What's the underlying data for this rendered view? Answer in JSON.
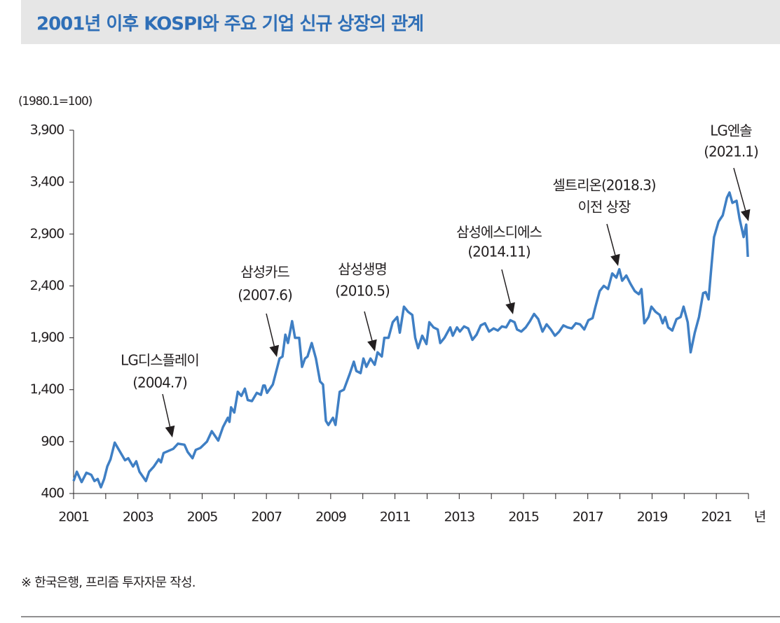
{
  "chart_data": {
    "type": "line",
    "title": "2001년 이후 KOSPI와 주요 기업 신규 상장의 관계",
    "y_unit": "(1980.1=100)",
    "x_unit": "년",
    "source": "※ 한국은행, 프리즘 투자자문 작성.",
    "color": "#3f7fc4",
    "xlim": [
      2001,
      2022
    ],
    "xticks": [
      2001,
      2003,
      2005,
      2007,
      2009,
      2011,
      2013,
      2015,
      2017,
      2019,
      2021
    ],
    "xminor": [
      2002,
      2004,
      2006,
      2008,
      2010,
      2012,
      2014,
      2016,
      2018,
      2020,
      2022
    ],
    "ylim": [
      400,
      3900
    ],
    "yticks": [
      400,
      900,
      {
        "value": 1400,
        "label": "1,400"
      },
      {
        "value": 1900,
        "label": "1,900"
      },
      {
        "value": 2400,
        "label": "2,400"
      },
      {
        "value": 2900,
        "label": "2,900"
      },
      {
        "value": 3400,
        "label": "3,400"
      },
      {
        "value": 3900,
        "label": "3,900"
      }
    ],
    "x": [
      2001.0,
      2001.1,
      2001.25,
      2001.4,
      2001.55,
      2001.65,
      2001.75,
      2001.85,
      2001.95,
      2002.05,
      2002.15,
      2002.28,
      2002.45,
      2002.6,
      2002.7,
      2002.85,
      2002.95,
      2003.05,
      2003.25,
      2003.35,
      2003.5,
      2003.65,
      2003.72,
      2003.8,
      2003.95,
      2004.1,
      2004.25,
      2004.45,
      2004.55,
      2004.7,
      2004.8,
      2004.95,
      2005.15,
      2005.3,
      2005.5,
      2005.65,
      2005.8,
      2005.85,
      2005.9,
      2006.0,
      2006.11,
      2006.22,
      2006.33,
      2006.42,
      2006.55,
      2006.7,
      2006.83,
      2006.9,
      2006.95,
      2007.02,
      2007.2,
      2007.41,
      2007.5,
      2007.59,
      2007.67,
      2007.8,
      2007.89,
      2008.02,
      2008.11,
      2008.2,
      2008.28,
      2008.41,
      2008.54,
      2008.67,
      2008.76,
      2008.85,
      2008.93,
      2009.07,
      2009.15,
      2009.28,
      2009.41,
      2009.59,
      2009.72,
      2009.8,
      2009.93,
      2010.02,
      2010.11,
      2010.24,
      2010.37,
      2010.46,
      2010.59,
      2010.67,
      2010.8,
      2010.93,
      2011.07,
      2011.15,
      2011.28,
      2011.41,
      2011.54,
      2011.63,
      2011.72,
      2011.85,
      2011.98,
      2012.07,
      2012.2,
      2012.33,
      2012.41,
      2012.54,
      2012.72,
      2012.8,
      2012.93,
      2013.02,
      2013.15,
      2013.28,
      2013.41,
      2013.54,
      2013.67,
      2013.8,
      2013.93,
      2014.07,
      2014.2,
      2014.33,
      2014.46,
      2014.59,
      2014.72,
      2014.8,
      2014.93,
      2015.07,
      2015.2,
      2015.33,
      2015.46,
      2015.59,
      2015.72,
      2015.85,
      2015.98,
      2016.11,
      2016.24,
      2016.37,
      2016.5,
      2016.63,
      2016.76,
      2016.89,
      2017.02,
      2017.15,
      2017.24,
      2017.37,
      2017.5,
      2017.63,
      2017.76,
      2017.89,
      2017.98,
      2018.07,
      2018.2,
      2018.33,
      2018.46,
      2018.59,
      2018.67,
      2018.76,
      2018.89,
      2018.98,
      2019.11,
      2019.24,
      2019.33,
      2019.41,
      2019.5,
      2019.63,
      2019.76,
      2019.89,
      2019.98,
      2020.11,
      2020.2,
      2020.33,
      2020.46,
      2020.59,
      2020.67,
      2020.76,
      2020.85,
      2020.93,
      2021.07,
      2021.2,
      2021.33,
      2021.41,
      2021.5,
      2021.63,
      2021.72,
      2021.85,
      2021.93,
      2021.98
    ],
    "values": [
      520,
      610,
      510,
      600,
      580,
      520,
      540,
      460,
      540,
      660,
      730,
      890,
      800,
      720,
      740,
      660,
      710,
      610,
      520,
      610,
      660,
      730,
      700,
      790,
      810,
      830,
      880,
      870,
      800,
      740,
      820,
      840,
      900,
      1000,
      910,
      1040,
      1130,
      1090,
      1230,
      1180,
      1380,
      1340,
      1410,
      1300,
      1290,
      1370,
      1350,
      1440,
      1440,
      1370,
      1450,
      1700,
      1720,
      1930,
      1850,
      2060,
      1900,
      1900,
      1620,
      1700,
      1720,
      1850,
      1700,
      1480,
      1450,
      1100,
      1060,
      1130,
      1060,
      1380,
      1400,
      1550,
      1670,
      1580,
      1560,
      1700,
      1620,
      1700,
      1640,
      1760,
      1720,
      1900,
      1900,
      2050,
      2100,
      1950,
      2200,
      2150,
      2120,
      1900,
      1800,
      1920,
      1840,
      2050,
      2000,
      1980,
      1850,
      1900,
      2000,
      1920,
      2000,
      1960,
      2010,
      1990,
      1880,
      1930,
      2020,
      2040,
      1960,
      1990,
      1970,
      2010,
      2000,
      2070,
      2050,
      1980,
      1960,
      2000,
      2060,
      2130,
      2080,
      1960,
      2030,
      1980,
      1920,
      1960,
      2020,
      2000,
      1990,
      2040,
      2030,
      1980,
      2070,
      2090,
      2200,
      2350,
      2400,
      2370,
      2520,
      2480,
      2560,
      2450,
      2500,
      2420,
      2350,
      2320,
      2370,
      2040,
      2100,
      2200,
      2150,
      2120,
      2040,
      2100,
      2000,
      1970,
      2080,
      2100,
      2200,
      2050,
      1760,
      1950,
      2100,
      2330,
      2340,
      2270,
      2600,
      2870,
      3020,
      3080,
      3250,
      3300,
      3200,
      3220,
      3050,
      2870,
      2990,
      2680
    ],
    "annotations": [
      {
        "lines": [
          "LG디스플레이",
          "(2004.7)"
        ]
      },
      {
        "lines": [
          "삼성카드",
          "(2007.6)"
        ]
      },
      {
        "lines": [
          "삼성생명",
          "(2010.5)"
        ]
      },
      {
        "lines": [
          "삼성에스디에스",
          "(2014.11)"
        ]
      },
      {
        "lines": [
          "셀트리온(2018.3)",
          "이전 상장"
        ]
      },
      {
        "lines": [
          "LG엔솔",
          "(2021.1)"
        ]
      }
    ]
  }
}
